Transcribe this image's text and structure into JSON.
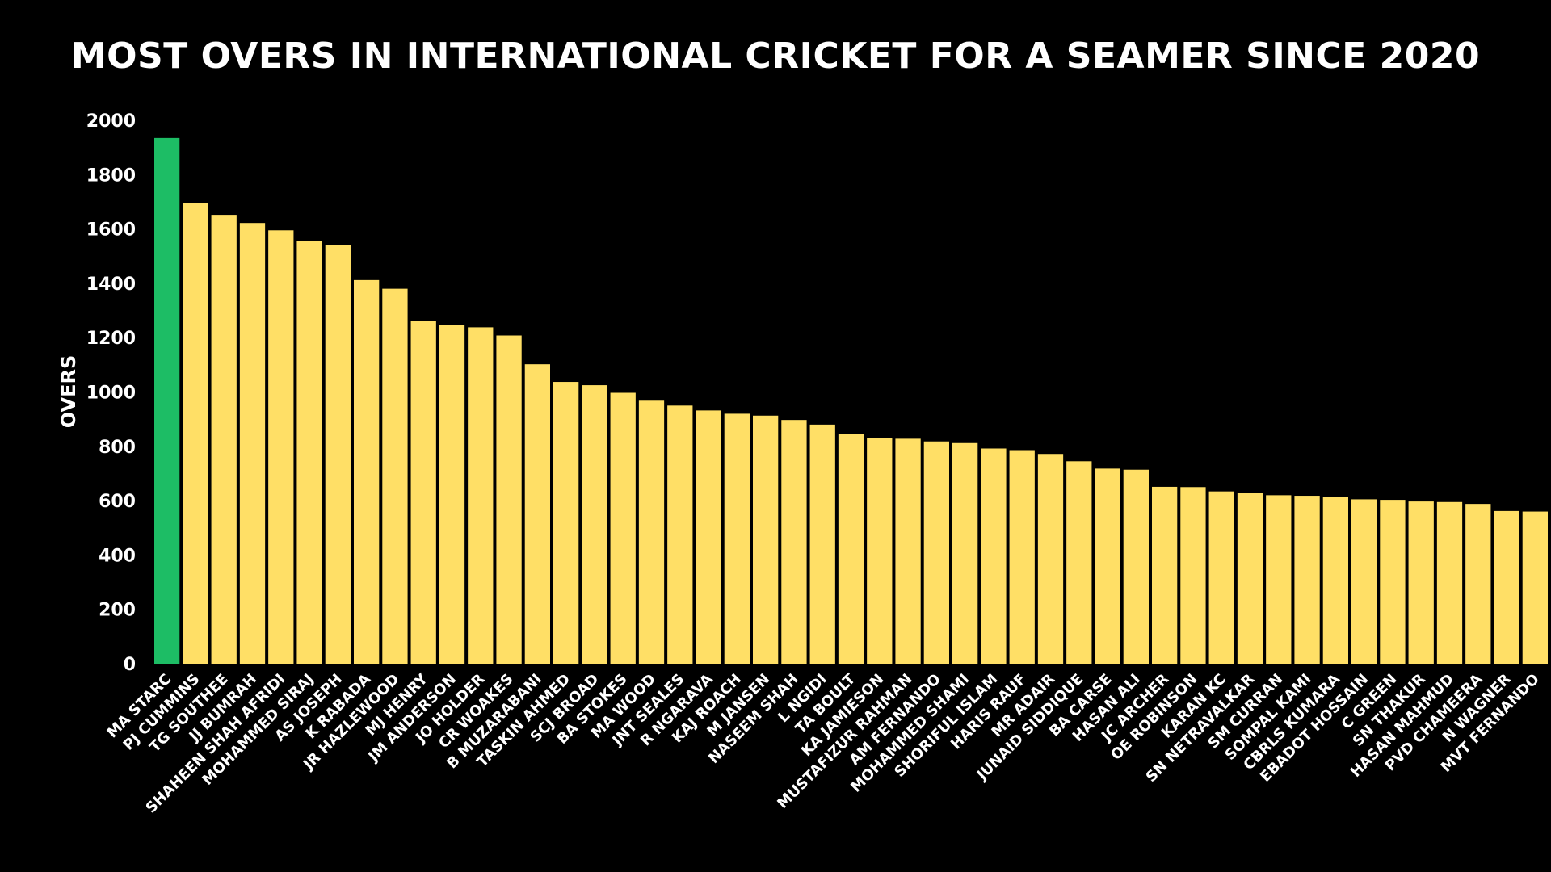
{
  "colors": {
    "background": "#000000",
    "bar": "#ffdf66",
    "highlight": "#1dbd65",
    "text": "#ffffff"
  },
  "chart_data": {
    "type": "bar",
    "title": "MOST OVERS IN INTERNATIONAL CRICKET FOR A SEAMER SINCE 2020",
    "ylabel": "OVERS",
    "xlabel": "",
    "ylim": [
      0,
      2000
    ],
    "yticks": [
      0,
      200,
      400,
      600,
      800,
      1000,
      1200,
      1400,
      1600,
      1800,
      2000
    ],
    "grid": false,
    "highlight_index": 0,
    "categories": [
      "MA STARC",
      "PJ CUMMINS",
      "TG SOUTHEE",
      "JJ BUMRAH",
      "SHAHEEN SHAH AFRIDI",
      "MOHAMMED SIRAJ",
      "AS JOSEPH",
      "K RABADA",
      "JR HAZLEWOOD",
      "MJ HENRY",
      "JM ANDERSON",
      "JO HOLDER",
      "CR WOAKES",
      "B MUZARABANI",
      "TASKIN AHMED",
      "SCJ BROAD",
      "BA STOKES",
      "MA WOOD",
      "JNT SEALES",
      "R NGARAVA",
      "KAJ ROACH",
      "M JANSEN",
      "NASEEM SHAH",
      "L NGIDI",
      "TA BOULT",
      "KA JAMIESON",
      "MUSTAFIZUR RAHMAN",
      "AM FERNANDO",
      "MOHAMMED SHAMI",
      "SHORIFUL ISLAM",
      "HARIS RAUF",
      "MR ADAIR",
      "JUNAID SIDDIQUE",
      "BA CARSE",
      "HASAN ALI",
      "JC ARCHER",
      "OE ROBINSON",
      "KARAN KC",
      "SN NETRAVALKAR",
      "SM CURRAN",
      "SOMPAL KAMI",
      "CBRLS KUMARA",
      "EBADOT HOSSAIN",
      "C GREEN",
      "SN THAKUR",
      "HASAN MAHMUD",
      "PVD CHAMEERA",
      "N WAGNER",
      "MVT FERNANDO"
    ],
    "values": [
      1935,
      1695,
      1652,
      1622,
      1595,
      1555,
      1540,
      1412,
      1380,
      1262,
      1248,
      1238,
      1208,
      1102,
      1037,
      1025,
      997,
      968,
      950,
      932,
      920,
      913,
      897,
      880,
      846,
      832,
      828,
      818,
      812,
      792,
      786,
      772,
      745,
      718,
      714,
      651,
      650,
      634,
      628,
      620,
      618,
      615,
      605,
      603,
      597,
      595,
      588,
      562,
      560
    ]
  }
}
